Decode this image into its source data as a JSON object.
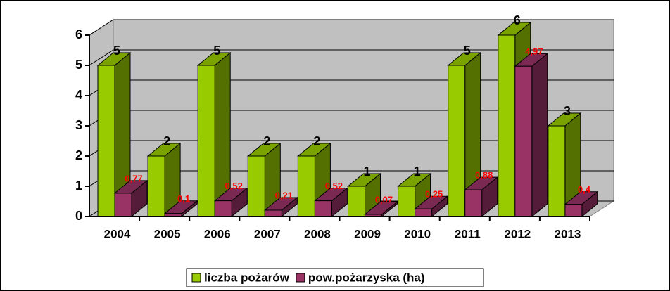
{
  "chart_data": {
    "type": "bar3d",
    "categories": [
      "2004",
      "2005",
      "2006",
      "2007",
      "2008",
      "2009",
      "2010",
      "2011",
      "2012",
      "2013"
    ],
    "series": [
      {
        "name": "liczba pożarów",
        "color": "#99cc00",
        "values": [
          5,
          2,
          5,
          2,
          2,
          1,
          1,
          5,
          6,
          3
        ]
      },
      {
        "name": "pow.pożarzyska (ha)",
        "color": "#993366",
        "values": [
          0.77,
          0.1,
          0.52,
          0.21,
          0.52,
          0.07,
          0.25,
          0.88,
          4.97,
          0.4
        ],
        "value_labels": [
          "0,77",
          "0,1",
          "0,52",
          "0,21",
          "0,52",
          "0,07",
          "0,25",
          "0,88",
          "4,97",
          "0,4"
        ]
      }
    ],
    "ylim": [
      0,
      6
    ],
    "yticks": [
      0,
      1,
      2,
      3,
      4,
      5,
      6
    ],
    "grid": true,
    "legend": "bottom"
  }
}
